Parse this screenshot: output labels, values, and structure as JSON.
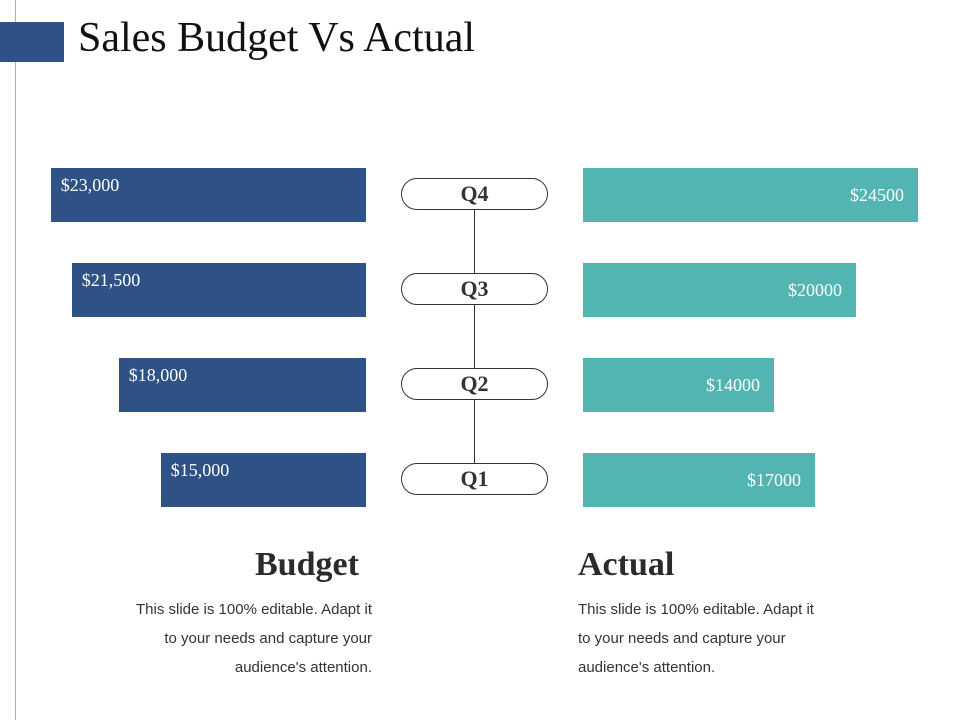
{
  "slide": {
    "title": "Sales Budget Vs Actual"
  },
  "sections": {
    "budget": {
      "heading": "Budget",
      "description": "This slide is 100% editable. Adapt it to your needs and capture your audience's attention."
    },
    "actual": {
      "heading": "Actual",
      "description": "This slide is 100% editable. Adapt it to your needs and capture your audience's attention."
    }
  },
  "colors": {
    "budget": "#2f5286",
    "actual": "#52b5b1",
    "accent": "#2f5286"
  },
  "chart_data": {
    "type": "bar",
    "categories": [
      "Q4",
      "Q3",
      "Q2",
      "Q1"
    ],
    "series": [
      {
        "name": "Budget",
        "values": [
          23000,
          21500,
          18000,
          15000
        ],
        "labels": [
          "$23,000",
          "$21,500",
          "$18,000",
          "$15,000"
        ]
      },
      {
        "name": "Actual",
        "values": [
          24500,
          20000,
          14000,
          17000
        ],
        "labels": [
          "$24500",
          "$20000",
          "$14000",
          "$17000"
        ]
      }
    ],
    "title": "Sales Budget Vs Actual",
    "xlabel": "",
    "ylabel": ""
  }
}
